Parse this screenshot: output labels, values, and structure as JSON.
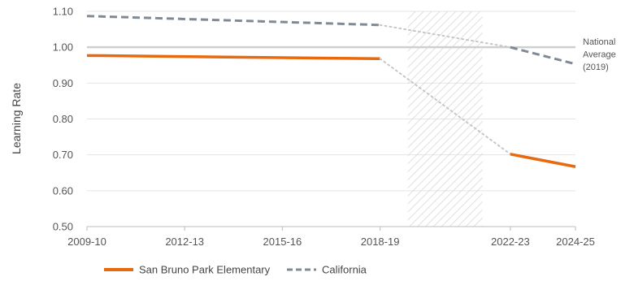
{
  "chart_data": {
    "type": "line",
    "title": "",
    "ylabel": "Learning Rate",
    "xlabel": "",
    "ylim": [
      0.5,
      1.1
    ],
    "y_ticks": [
      "0.50",
      "0.60",
      "0.70",
      "0.80",
      "0.90",
      "1.00",
      "1.10"
    ],
    "x_range": [
      2009,
      2024
    ],
    "x_ticks": [
      {
        "label": "2009-10",
        "x": 2009
      },
      {
        "label": "2012-13",
        "x": 2012
      },
      {
        "label": "2015-16",
        "x": 2015
      },
      {
        "label": "2018-19",
        "x": 2018
      },
      {
        "label": "2022-23",
        "x": 2022
      },
      {
        "label": "2024-25",
        "x": 2024
      }
    ],
    "gap_period": {
      "start": 2019,
      "end": 2021
    },
    "reference_line": {
      "value": 1.0,
      "label_lines": [
        "National",
        "Average",
        "(2019)"
      ]
    },
    "series": [
      {
        "name": "San Bruno Park Elementary",
        "color": "#E8690E",
        "style": "solid",
        "points": [
          {
            "x": 2009,
            "y": 0.977
          },
          {
            "x": 2018,
            "y": 0.968
          },
          {
            "x": 2022,
            "y": 0.702
          },
          {
            "x": 2024,
            "y": 0.667
          }
        ]
      },
      {
        "name": "California",
        "color": "#7F8A96",
        "style": "dashed",
        "points": [
          {
            "x": 2009,
            "y": 1.087
          },
          {
            "x": 2018,
            "y": 1.062
          },
          {
            "x": 2022,
            "y": 1.0
          },
          {
            "x": 2024,
            "y": 0.953
          }
        ]
      }
    ],
    "interpolation_color": "#C4C8CC",
    "grid": true
  }
}
